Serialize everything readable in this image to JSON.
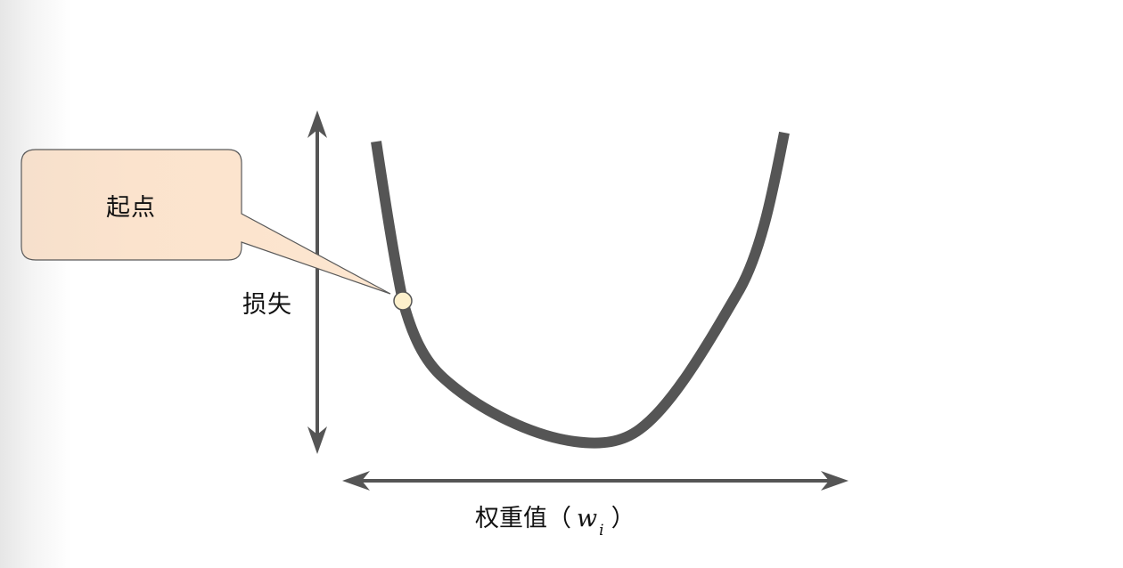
{
  "callout": {
    "text": "起点"
  },
  "axes": {
    "y_label": "损失",
    "x_label": "权重值（",
    "x_var": "w",
    "x_sub": "i",
    "x_close": "）"
  },
  "colors": {
    "curve": "#555555",
    "callout_fill": "#fbe3cd",
    "start_point_fill": "#fdf0cc"
  }
}
